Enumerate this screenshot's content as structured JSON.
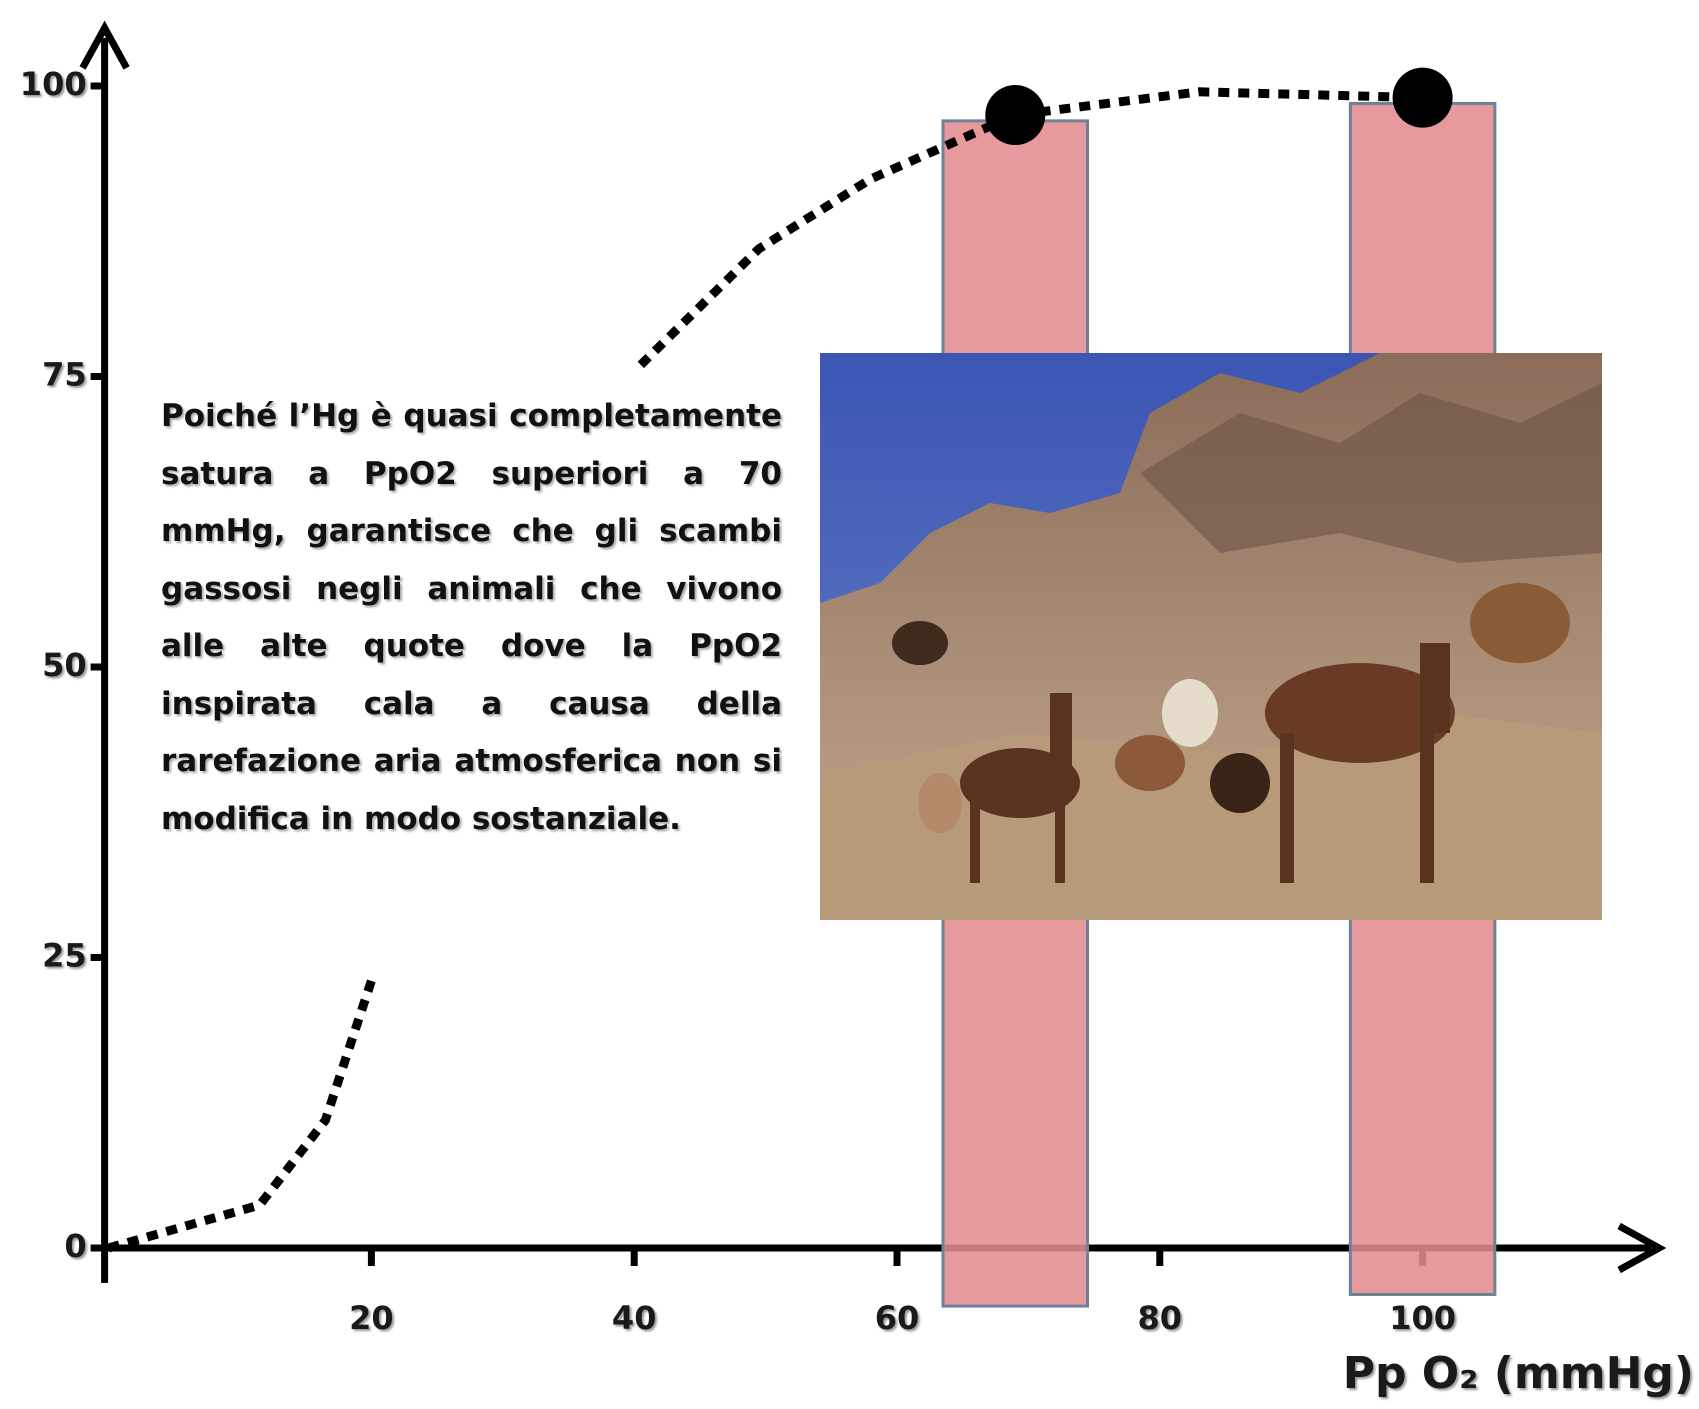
{
  "chart_data": {
    "type": "line",
    "x_label": "Pp O₂ (mmHg)",
    "xlim": [
      0,
      118
    ],
    "ylim": [
      -3,
      105
    ],
    "xticks": [
      20,
      40,
      60,
      80,
      100
    ],
    "yticks": [
      0,
      25,
      50,
      75,
      100
    ],
    "series": [
      {
        "color": "#000000",
        "x": [
          0,
          11.5,
          16.5,
          20,
          30,
          40.5,
          49.5,
          58,
          69,
          83,
          100
        ],
        "values": [
          0,
          3.7,
          11,
          23,
          null,
          76,
          86,
          92,
          97.5,
          99.5,
          99
        ]
      }
    ],
    "markers": {
      "color": "#000000",
      "x": [
        69,
        100
      ],
      "values": [
        97.5,
        99
      ]
    },
    "bands": {
      "color": "#e48c90",
      "x0": [
        63.5,
        94.5
      ],
      "x1": [
        74.5,
        105.5
      ],
      "top": [
        97,
        98.5
      ],
      "bottom": [
        -5,
        -4
      ]
    },
    "annotation": "Poiché l’Hg è quasi completamente satura a PpO2 superiori a 70 mmHg, garantisce che gli scambi gassosi negli animali che vivono alle alte quote dove la PpO2 inspirata cala a causa della rarefazione aria atmosferica non si modifica in modo sostanziale."
  }
}
